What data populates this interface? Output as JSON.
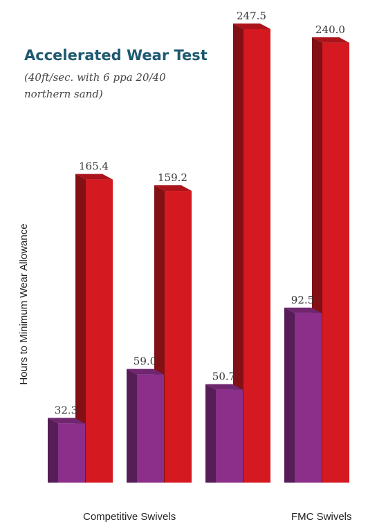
{
  "chart_data": {
    "type": "bar3d",
    "title": "Accelerated Wear Test",
    "subtitle": [
      "(40ft/sec. with 6 ppa 20/40",
      "northern sand)"
    ],
    "y_label": "Hours to Minimum Wear Allowance",
    "categories": [
      null,
      null,
      null,
      null
    ],
    "series": [
      {
        "name": "Competitive Swivels",
        "color": "#8b2f8b",
        "values": [
          32.3,
          59.0,
          50.7,
          92.5
        ],
        "value_labels": [
          "32.3",
          "59.0",
          "50.7",
          "92.5"
        ]
      },
      {
        "name": "FMC Swivels",
        "color": "#d41920",
        "values": [
          165.4,
          159.2,
          247.5,
          240.0
        ],
        "value_labels": [
          "165.4",
          "159.2",
          "247.5",
          "240.0"
        ]
      }
    ]
  }
}
